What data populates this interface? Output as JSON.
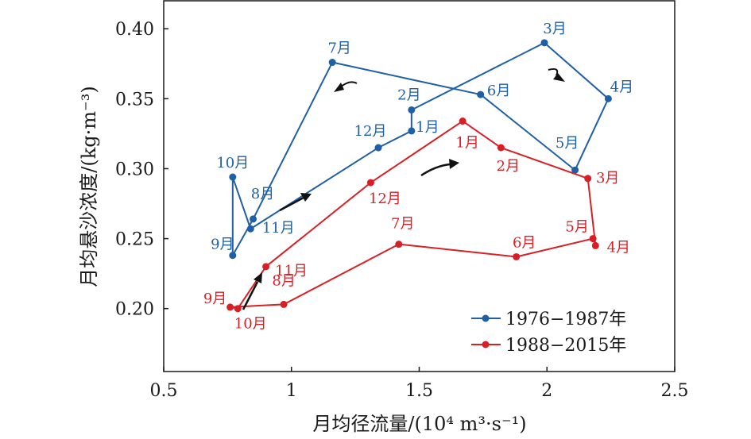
{
  "chart_data": {
    "type": "line",
    "xlabel": "月均径流量/(10⁴ m³·s⁻¹)",
    "ylabel": "月均悬沙浓度/(kg·m⁻³)",
    "xlim": [
      0.5,
      2.5
    ],
    "ylim": [
      0.155,
      0.42
    ],
    "xticks": [
      "0.5",
      "1",
      "1.5",
      "2",
      "2.5"
    ],
    "xtick_values": [
      0.5,
      1.0,
      1.5,
      2.0,
      2.5
    ],
    "yticks": [
      "0.20",
      "0.25",
      "0.30",
      "0.35",
      "0.40"
    ],
    "ytick_values": [
      0.2,
      0.25,
      0.3,
      0.35,
      0.4
    ],
    "grid": false,
    "legend_position": "bottom-right",
    "series": [
      {
        "name": "1976−1987年",
        "color": "#1f5fa6",
        "points": [
          {
            "label": "1月",
            "x": 1.47,
            "y": 0.327
          },
          {
            "label": "2月",
            "x": 1.47,
            "y": 0.342
          },
          {
            "label": "3月",
            "x": 1.99,
            "y": 0.39
          },
          {
            "label": "4月",
            "x": 2.24,
            "y": 0.35
          },
          {
            "label": "5月",
            "x": 2.11,
            "y": 0.299
          },
          {
            "label": "6月",
            "x": 1.74,
            "y": 0.353
          },
          {
            "label": "7月",
            "x": 1.16,
            "y": 0.376
          },
          {
            "label": "8月",
            "x": 0.85,
            "y": 0.264
          },
          {
            "label": "9月",
            "x": 0.77,
            "y": 0.238
          },
          {
            "label": "10月",
            "x": 0.77,
            "y": 0.294
          },
          {
            "label": "11月",
            "x": 0.84,
            "y": 0.257
          },
          {
            "label": "12月",
            "x": 1.34,
            "y": 0.315
          }
        ]
      },
      {
        "name": "1988−2015年",
        "color": "#d91f26",
        "points": [
          {
            "label": "1月",
            "x": 1.67,
            "y": 0.334
          },
          {
            "label": "2月",
            "x": 1.82,
            "y": 0.315
          },
          {
            "label": "3月",
            "x": 2.16,
            "y": 0.293
          },
          {
            "label": "4月",
            "x": 2.19,
            "y": 0.245
          },
          {
            "label": "5月",
            "x": 2.18,
            "y": 0.25
          },
          {
            "label": "6月",
            "x": 1.88,
            "y": 0.237
          },
          {
            "label": "7月",
            "x": 1.42,
            "y": 0.246
          },
          {
            "label": "8月",
            "x": 0.97,
            "y": 0.203
          },
          {
            "label": "9月",
            "x": 0.76,
            "y": 0.201
          },
          {
            "label": "10月",
            "x": 0.79,
            "y": 0.2
          },
          {
            "label": "11月",
            "x": 0.9,
            "y": 0.23
          },
          {
            "label": "12月",
            "x": 1.31,
            "y": 0.29
          }
        ]
      }
    ]
  }
}
